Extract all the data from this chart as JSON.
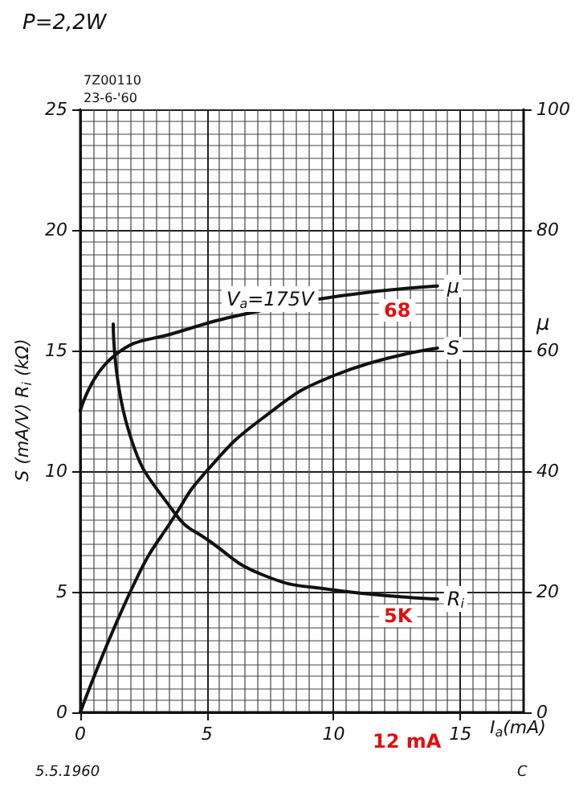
{
  "chart_data": {
    "type": "line",
    "xlabel": "I$_{a}$(mA)",
    "ylabel": "S (mA/V) R$_{i}$ (kΩ)",
    "y2label": "μ",
    "xlim": [
      0,
      17.5
    ],
    "xticks": [
      0,
      5,
      10,
      15
    ],
    "ylim": [
      0,
      25
    ],
    "yticks": [
      0,
      5,
      10,
      15,
      20,
      25
    ],
    "y2lim": [
      0,
      100
    ],
    "y2ticks": [
      0,
      20,
      40,
      60,
      80,
      100
    ],
    "grid": true,
    "legend": false,
    "marker": "none",
    "line_style": "solid",
    "series": [
      {
        "name": "μ",
        "color": "#111111",
        "axis": "y2",
        "x": [
          0,
          1.3,
          3.8,
          7.2,
          10.7,
          14.1
        ],
        "values": [
          50,
          59,
          63,
          66.7,
          69.3,
          70.7
        ]
      },
      {
        "name": "S",
        "color": "#111111",
        "x": [
          0,
          2.2,
          3.7,
          4.9,
          7.2,
          10.1,
          14.1
        ],
        "values": [
          0,
          5.5,
          8.1,
          9.9,
          12.2,
          14.0,
          15.1
        ]
      },
      {
        "name": "R$_{i}$",
        "color": "#111111",
        "x": [
          1.3,
          1.9,
          3.7,
          5.1,
          7.2,
          9.8,
          14.1
        ],
        "values": [
          16.1,
          11.7,
          8.3,
          7.1,
          5.7,
          5.1,
          4.7
        ]
      }
    ],
    "annotations": [
      "P=2,2W",
      "V$_{a}$=175V",
      "7Z00110",
      "23-6-'60",
      "5.5.1960",
      "C",
      "68",
      "5K",
      "12 mA"
    ]
  }
}
